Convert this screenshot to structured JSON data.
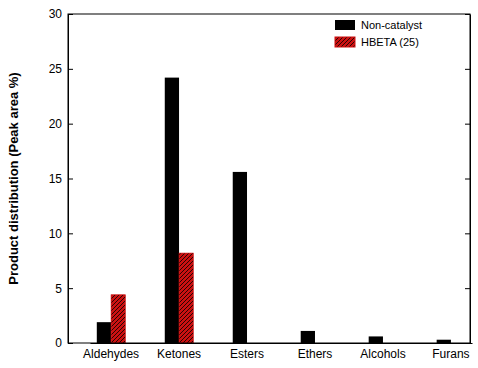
{
  "chart_data": {
    "type": "bar",
    "y_label": "Product distribution (Peak area %)",
    "categories": [
      "Aldehydes",
      "Ketones",
      "Esters",
      "Ethers",
      "Alcohols",
      "Furans"
    ],
    "series": [
      {
        "name": "Non-catalyst",
        "color": "#000000",
        "values": [
          1.9,
          24.2,
          15.6,
          1.1,
          0.6,
          0.3
        ]
      },
      {
        "name": "HBETA (25)",
        "color": "#cc1111",
        "values": [
          4.4,
          8.2,
          0,
          0,
          0,
          0
        ]
      }
    ],
    "ylim": [
      0,
      30
    ],
    "yticks": [
      0,
      5,
      10,
      15,
      20,
      25,
      30
    ],
    "legend": "upper-right",
    "grid": false
  }
}
